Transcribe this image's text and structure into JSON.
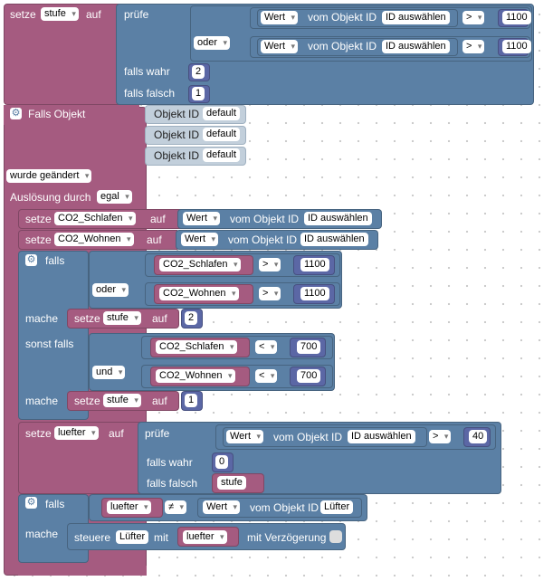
{
  "colors": {
    "variable": "#a55b80",
    "logic": "#5b80a5",
    "number": "#5b67a5",
    "literal": "#c2cfdb"
  },
  "block1": {
    "setze": "setze",
    "var": "stufe",
    "auf": "auf",
    "pruefe": "prüfe",
    "oder": "oder",
    "wert": "Wert",
    "vom_objekt": "vom Objekt ID",
    "id_select": "ID auswählen",
    "op": ">",
    "v1": "1100",
    "v2": "1100",
    "falls_wahr": "falls wahr",
    "falls_falsch": "falls falsch",
    "wahr_val": "2",
    "falsch_val": "1"
  },
  "trigger": {
    "falls_objekt": "Falls Objekt",
    "objekt_id": "Objekt ID",
    "default": "default",
    "wurde_geaendert": "wurde geändert",
    "ausloesung": "Auslösung durch",
    "egal": "egal"
  },
  "set_schlafen": {
    "setze": "setze",
    "var": "CO2_Schlafen",
    "auf": "auf",
    "wert": "Wert",
    "vom_objekt": "vom Objekt ID",
    "id_select": "ID auswählen"
  },
  "set_wohnen": {
    "setze": "setze",
    "var": "CO2_Wohnen",
    "auf": "auf",
    "wert": "Wert",
    "vom_objekt": "vom Objekt ID",
    "id_select": "ID auswählen"
  },
  "if_block": {
    "falls": "falls",
    "oder": "oder",
    "und": "und",
    "mache": "mache",
    "sonst_falls": "sonst falls",
    "c1_var": "CO2_Schlafen",
    "c1_op": ">",
    "c1_val": "1100",
    "c2_var": "CO2_Wohnen",
    "c2_op": ">",
    "c2_val": "1100",
    "set1_setze": "setze",
    "set1_var": "stufe",
    "set1_auf": "auf",
    "set1_val": "2",
    "c3_var": "CO2_Schlafen",
    "c3_op": "<",
    "c3_val": "700",
    "c4_var": "CO2_Wohnen",
    "c4_op": "<",
    "c4_val": "700",
    "set2_setze": "setze",
    "set2_var": "stufe",
    "set2_auf": "auf",
    "set2_val": "1"
  },
  "luefter_block": {
    "setze": "setze",
    "var": "luefter",
    "auf": "auf",
    "pruefe": "prüfe",
    "wert": "Wert",
    "vom_objekt": "vom Objekt ID",
    "id_select": "ID auswählen",
    "op": ">",
    "val": "40",
    "falls_wahr": "falls wahr",
    "falls_falsch": "falls falsch",
    "wahr_val": "0",
    "falsch_var": "stufe"
  },
  "if2": {
    "falls": "falls",
    "mache": "mache",
    "var": "luefter",
    "op": "≠",
    "wert": "Wert",
    "vom_objekt": "vom Objekt ID",
    "obj": "Lüfter",
    "steuere": "steuere",
    "target": "Lüfter",
    "mit": "mit",
    "val_var": "luefter",
    "verzoegerung": "mit Verzögerung"
  }
}
